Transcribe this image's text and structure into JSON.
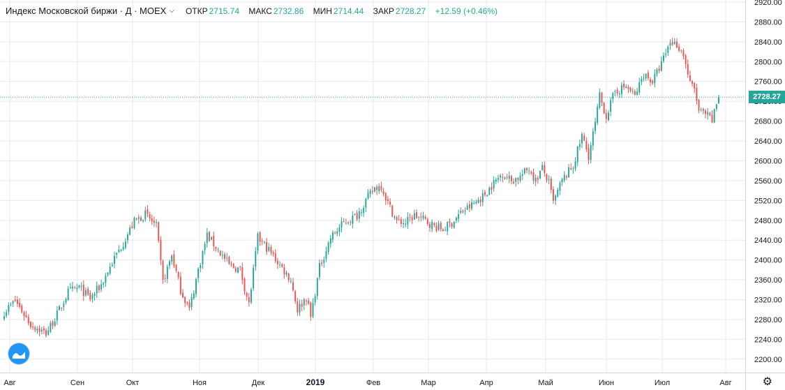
{
  "legend": {
    "title": "Индекс Московской биржи · Д · MOEX",
    "chevron_icon": "chevron-down-icon",
    "open_label": "ОТКР",
    "open_value": "2715.74",
    "high_label": "МАКС",
    "high_value": "2732.86",
    "low_label": "МИН",
    "low_value": "2714.44",
    "close_label": "ЗАКР",
    "close_value": "2728.27",
    "change": "+12.59 (+0.46%)"
  },
  "last_price_label": "2728.27",
  "colors": {
    "up": "#26a69a",
    "down": "#ef5350",
    "grid": "#e6eaf0",
    "last_line": "#26a69a",
    "logo": "#2196f3"
  },
  "icons": {
    "logo": "tradingview-logo-icon",
    "settings": "gear-icon"
  },
  "chart_data": {
    "type": "candlestick",
    "y_axis": {
      "range": [
        2180,
        2920
      ],
      "ticks": [
        "2200.00",
        "2240.00",
        "2280.00",
        "2320.00",
        "2360.00",
        "2400.00",
        "2440.00",
        "2480.00",
        "2520.00",
        "2560.00",
        "2600.00",
        "2640.00",
        "2680.00",
        "2720.00",
        "2760.00",
        "2800.00",
        "2840.00",
        "2880.00",
        "2920.00"
      ]
    },
    "x_axis": {
      "ticks": [
        "Авг",
        "Сен",
        "Окт",
        "Ноя",
        "Дек",
        "2019",
        "Фев",
        "Мар",
        "Апр",
        "Май",
        "Июн",
        "Июл",
        "Авг"
      ],
      "bold": [
        "2019"
      ]
    },
    "grid": true,
    "last_price": 2728.27,
    "anchors": [
      [
        0,
        2295
      ],
      [
        5,
        2318
      ],
      [
        12,
        2270
      ],
      [
        19,
        2252
      ],
      [
        24,
        2290
      ],
      [
        29,
        2335
      ],
      [
        34,
        2345
      ],
      [
        39,
        2322
      ],
      [
        44,
        2350
      ],
      [
        49,
        2395
      ],
      [
        54,
        2435
      ],
      [
        59,
        2478
      ],
      [
        64,
        2492
      ],
      [
        69,
        2468
      ],
      [
        72,
        2355
      ],
      [
        76,
        2410
      ],
      [
        80,
        2340
      ],
      [
        84,
        2300
      ],
      [
        88,
        2380
      ],
      [
        92,
        2450
      ],
      [
        97,
        2420
      ],
      [
        102,
        2390
      ],
      [
        107,
        2380
      ],
      [
        111,
        2310
      ],
      [
        115,
        2445
      ],
      [
        120,
        2420
      ],
      [
        125,
        2390
      ],
      [
        130,
        2360
      ],
      [
        133,
        2300
      ],
      [
        137,
        2325
      ],
      [
        139,
        2285
      ],
      [
        143,
        2385
      ],
      [
        148,
        2445
      ],
      [
        154,
        2475
      ],
      [
        160,
        2490
      ],
      [
        164,
        2520
      ],
      [
        168,
        2545
      ],
      [
        171,
        2550
      ],
      [
        174,
        2515
      ],
      [
        178,
        2478
      ],
      [
        182,
        2475
      ],
      [
        186,
        2490
      ],
      [
        190,
        2482
      ],
      [
        195,
        2468
      ],
      [
        199,
        2462
      ],
      [
        203,
        2475
      ],
      [
        207,
        2495
      ],
      [
        212,
        2510
      ],
      [
        217,
        2528
      ],
      [
        222,
        2555
      ],
      [
        226,
        2575
      ],
      [
        230,
        2560
      ],
      [
        234,
        2568
      ],
      [
        238,
        2585
      ],
      [
        241,
        2560
      ],
      [
        244,
        2585
      ],
      [
        247,
        2555
      ],
      [
        249,
        2515
      ],
      [
        253,
        2560
      ],
      [
        258,
        2590
      ],
      [
        262,
        2650
      ],
      [
        265,
        2610
      ],
      [
        268,
        2675
      ],
      [
        270,
        2730
      ],
      [
        273,
        2690
      ],
      [
        277,
        2740
      ],
      [
        282,
        2750
      ],
      [
        286,
        2730
      ],
      [
        290,
        2775
      ],
      [
        294,
        2760
      ],
      [
        298,
        2795
      ],
      [
        302,
        2840
      ],
      [
        305,
        2835
      ],
      [
        308,
        2815
      ],
      [
        311,
        2755
      ],
      [
        313,
        2745
      ],
      [
        315,
        2700
      ],
      [
        319,
        2690
      ],
      [
        321,
        2680
      ],
      [
        323,
        2715
      ],
      [
        324,
        2728.27
      ]
    ],
    "candle_count": 325
  }
}
